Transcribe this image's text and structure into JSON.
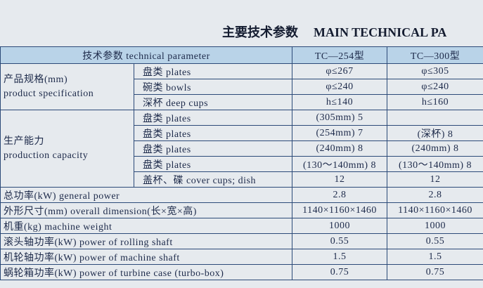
{
  "title": {
    "zh": "主要技术参数",
    "en": "MAIN TECHNICAL PA"
  },
  "table": {
    "header": [
      "技术参数 technical parameter",
      "TC—254型",
      "TC—300型"
    ],
    "groups": [
      {
        "label_zh": "产品规格(mm)",
        "label_en": "product specification",
        "rows": [
          [
            "盘类 plates",
            "φ≤267",
            "φ≤305"
          ],
          [
            "碗类 bowls",
            "φ≤240",
            "φ≤240"
          ],
          [
            "深杯 deep cups",
            "h≤140",
            "h≤160"
          ]
        ]
      },
      {
        "label_zh": "生产能力",
        "label_en": "production capacity",
        "rows": [
          [
            "盘类 plates",
            "(305mm) 5",
            null
          ],
          [
            "盘类 plates",
            "(254mm) 7",
            "(深杯) 8"
          ],
          [
            "盘类 plates",
            "(240mm) 8",
            "(240mm) 8"
          ],
          [
            "盘类 plates",
            "(130～140mm) 8",
            "(130～140mm) 8"
          ],
          [
            "盖杯、碟 cover cups; dish",
            "12",
            "12"
          ]
        ]
      }
    ],
    "rows": [
      [
        "总功率(kW) general power",
        "2.8",
        "2.8"
      ],
      [
        "外形尺寸(mm) overall dimension(长×宽×高)",
        "1140×1160×1460",
        "1140×1160×1460"
      ],
      [
        "机重(kg) machine weight",
        "1000",
        "1000"
      ],
      [
        "滚头轴功率(kW) power of rolling shaft",
        "0.55",
        "0.55"
      ],
      [
        "机轮轴功率(kW) power of machine shaft",
        "1.5",
        "1.5"
      ],
      [
        "蜗轮箱功率(kW) power of turbine case (turbo-box)",
        "0.75",
        "0.75"
      ]
    ]
  }
}
